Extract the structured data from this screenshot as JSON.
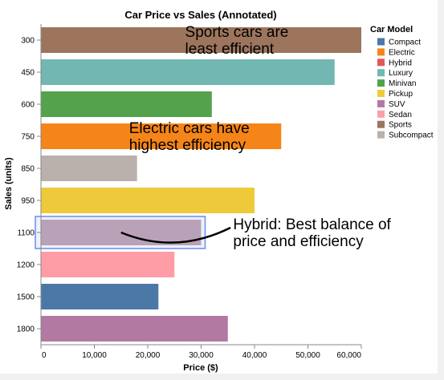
{
  "chart_data": {
    "type": "bar",
    "orientation": "horizontal",
    "title": "Car Price vs Sales (Annotated)",
    "xlabel": "Price ($)",
    "ylabel": "Sales (units)",
    "xlim": [
      0,
      60000
    ],
    "x_ticks": [
      "0",
      "10,000",
      "20,000",
      "30,000",
      "40,000",
      "50,000",
      "60,000"
    ],
    "x_tick_values": [
      0,
      10000,
      20000,
      30000,
      40000,
      50000,
      60000
    ],
    "grid": false,
    "legend": {
      "title": "Car Model",
      "placement": "right",
      "entries": [
        {
          "name": "Compact",
          "color": "#4c78a8"
        },
        {
          "name": "Electric",
          "color": "#f58518"
        },
        {
          "name": "Hybrid",
          "color": "#e45756"
        },
        {
          "name": "Luxury",
          "color": "#72b7b2"
        },
        {
          "name": "Minivan",
          "color": "#54a24b"
        },
        {
          "name": "Pickup",
          "color": "#eeca3b"
        },
        {
          "name": "SUV",
          "color": "#b279a2"
        },
        {
          "name": "Sedan",
          "color": "#ff9da6"
        },
        {
          "name": "Sports",
          "color": "#9d755d"
        },
        {
          "name": "Subcompact",
          "color": "#bab0ac"
        }
      ]
    },
    "bars": [
      {
        "sales": "300",
        "model": "Sports",
        "price": 60000
      },
      {
        "sales": "450",
        "model": "Luxury",
        "price": 55000
      },
      {
        "sales": "600",
        "model": "Minivan",
        "price": 32000
      },
      {
        "sales": "750",
        "model": "Electric",
        "price": 45000
      },
      {
        "sales": "850",
        "model": "Subcompact",
        "price": 18000
      },
      {
        "sales": "950",
        "model": "Pickup",
        "price": 40000
      },
      {
        "sales": "1100",
        "model": "Hybrid",
        "price": 30000,
        "highlighted": true
      },
      {
        "sales": "1200",
        "model": "Sedan",
        "price": 25000
      },
      {
        "sales": "1500",
        "model": "Compact",
        "price": 22000
      },
      {
        "sales": "1800",
        "model": "SUV",
        "price": 35000
      }
    ],
    "annotations": [
      {
        "lines": [
          "Sports cars are",
          "least efficient"
        ],
        "anchor_price": 27000,
        "anchor_sales": "300"
      },
      {
        "lines": [
          "Electric cars have",
          "highest efficiency"
        ],
        "anchor_price": 16500,
        "anchor_sales": "750"
      },
      {
        "lines": [
          "Hybrid: Best balance of",
          "price and efficiency"
        ],
        "anchor_price": 36000,
        "anchor_sales": "1100"
      }
    ],
    "highlight_box_color": "#6b8cf2",
    "annotation_curve_color": "#000000"
  }
}
